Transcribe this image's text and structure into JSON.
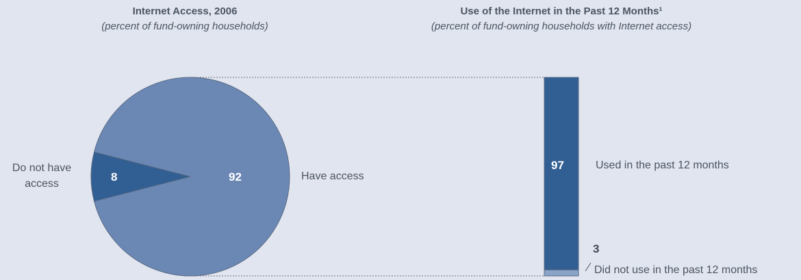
{
  "chart_data": [
    {
      "type": "pie",
      "title": "Internet Access, 2006",
      "subtitle": "(percent of fund-owning households)",
      "slices": [
        {
          "label": "Have access",
          "value": 92,
          "color": "#6b88b5"
        },
        {
          "label": "Do not have access",
          "value": 8,
          "color": "#325f93"
        }
      ]
    },
    {
      "type": "bar",
      "stacked": true,
      "title": "Use of the Internet in the Past 12 Months¹",
      "subtitle": "(percent of fund-owning households with Internet access)",
      "segments": [
        {
          "label": "Used in the past 12 months",
          "value": 97,
          "color": "#325f93"
        },
        {
          "label": "Did not use in the past 12 months",
          "value": 3,
          "color": "#8aa3c8"
        }
      ]
    }
  ]
}
